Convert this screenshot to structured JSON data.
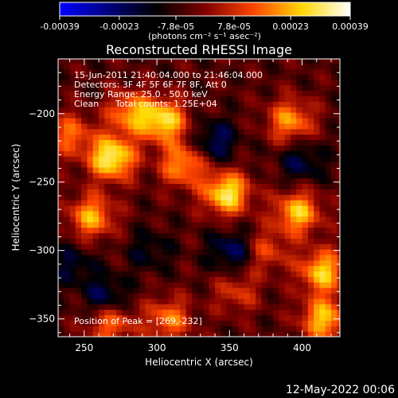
{
  "colorbar": {
    "tick_labels": [
      "-0.00039",
      "-0.00023",
      "-7.8e-05",
      "7.8e-05",
      "0.00023",
      "0.00039"
    ],
    "tick_values": [
      -0.00039,
      -0.00023,
      -7.8e-05,
      7.8e-05,
      0.00023,
      0.00039
    ],
    "range": [
      -0.00039,
      0.00039
    ],
    "unit_label": "(photons cm⁻² s⁻¹ asec⁻²)",
    "colors": [
      "#0000ff",
      "#00007f",
      "#000000",
      "#7f0000",
      "#ff4500",
      "#ffd700",
      "#ffffff"
    ]
  },
  "chart_data": {
    "type": "heatmap",
    "title": "Reconstructed RHESSI Image",
    "xlabel": "Heliocentric X (arcsec)",
    "ylabel": "Heliocentric Y (arcsec)",
    "xlim": [
      232,
      426
    ],
    "ylim": [
      -363,
      -160
    ],
    "xticks": [
      250,
      300,
      350,
      400
    ],
    "yticks": [
      -200,
      -250,
      -300,
      -350
    ],
    "xtick_labels": [
      "250",
      "300",
      "350",
      "400"
    ],
    "ytick_labels": [
      "-200",
      "-250",
      "-300",
      "-350"
    ],
    "annotations": [
      "15-Jun-2011 21:40:04.000 to 21:46:04.000",
      "Detectors: 3F 4F 5F 6F 7F 8F, Att 0",
      "Energy Range: 25.0 - 50.0 keV",
      "Clean",
      "Total counts: 1.25E+04"
    ],
    "peak_label": "Position of Peak = [269,-232]",
    "peak_position": [
      269,
      -232
    ],
    "hotspots": [
      {
        "x": 269,
        "y": -232,
        "value": 0.00039
      },
      {
        "x": 305,
        "y": -205,
        "value": 0.00033
      },
      {
        "x": 348,
        "y": -258,
        "value": 0.00036
      },
      {
        "x": 318,
        "y": -237,
        "value": 0.00026
      },
      {
        "x": 255,
        "y": -275,
        "value": 0.00027
      },
      {
        "x": 282,
        "y": -199,
        "value": 0.00025
      },
      {
        "x": 308,
        "y": -350,
        "value": 0.00022
      },
      {
        "x": 268,
        "y": -352,
        "value": 0.00023
      },
      {
        "x": 397,
        "y": -272,
        "value": 0.0003
      },
      {
        "x": 414,
        "y": -315,
        "value": 0.00031
      },
      {
        "x": 415,
        "y": -350,
        "value": 0.0003
      },
      {
        "x": 392,
        "y": -205,
        "value": 0.00025
      },
      {
        "x": 375,
        "y": -300,
        "value": 0.00016
      },
      {
        "x": 355,
        "y": -330,
        "value": 0.00014
      },
      {
        "x": 240,
        "y": -215,
        "value": 0.0002
      }
    ],
    "coldspots": [
      {
        "x": 265,
        "y": -335,
        "value": -0.00018
      },
      {
        "x": 340,
        "y": -220,
        "value": -0.00017
      },
      {
        "x": 352,
        "y": -300,
        "value": -0.00018
      },
      {
        "x": 242,
        "y": -310,
        "value": -0.00012
      },
      {
        "x": 400,
        "y": -235,
        "value": -0.00014
      },
      {
        "x": 295,
        "y": -300,
        "value": -0.0001
      }
    ]
  },
  "timestamp": "12-May-2022 00:06"
}
